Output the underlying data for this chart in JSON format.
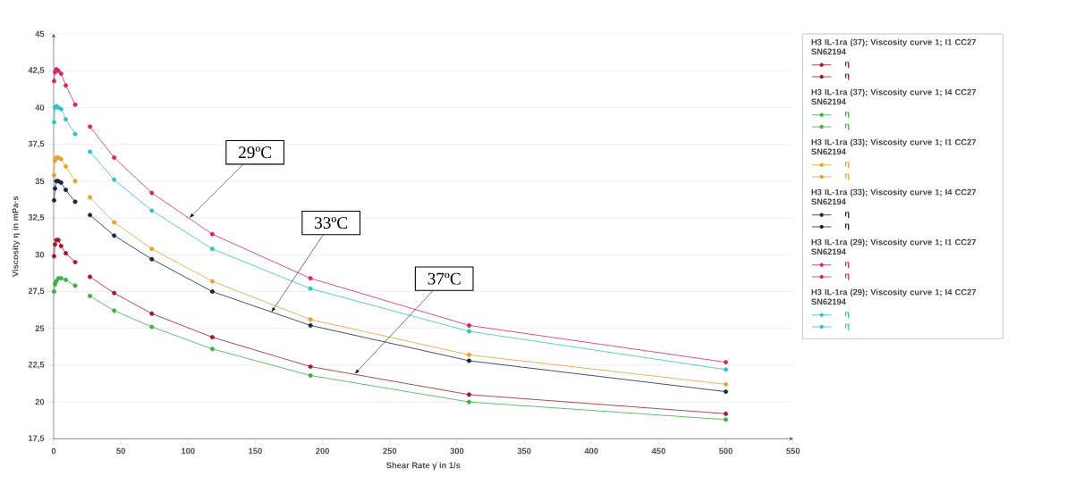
{
  "chart_data": {
    "type": "line",
    "xlabel": "Shear Rate γ̇ in 1/s",
    "ylabel": "Viscosity η in mPa·s",
    "xlim": [
      0,
      550
    ],
    "xticks": [
      0,
      50,
      100,
      150,
      200,
      250,
      300,
      350,
      400,
      450,
      500,
      550
    ],
    "ylim": [
      17.5,
      45
    ],
    "yticks": [
      {
        "value": 17.5,
        "label": "17,5"
      },
      20,
      {
        "value": 22.5,
        "label": "22,5"
      },
      25,
      {
        "value": 27.5,
        "label": "27,5"
      },
      30,
      {
        "value": 32.5,
        "label": "32,5"
      },
      35,
      {
        "value": 37.5,
        "label": "37,5"
      },
      40,
      {
        "value": 42.5,
        "label": "42,5"
      },
      45
    ],
    "grid": "y",
    "marker": "circle",
    "line_style": "solid",
    "legend": "right",
    "annotations": [
      "H3 IL-1ra (37); Viscosity curve 1; I1 CC27 SN62194",
      "H3 IL-1ra (37); Viscosity curve 1; I4 CC27 SN62194",
      "H3 IL-1ra (33); Viscosity curve 1; I1 CC27 SN62194",
      "H3 IL-1ra (33); Viscosity curve 1; I4 CC27 SN62194",
      "H3 IL-1ra (29); Viscosity curve 1; I1 CC27 SN62194",
      "H3 IL-1ra (29); Viscosity curve 1; I4 CC27 SN62194",
      {
        "text": "29ºC",
        "x": 101,
        "y": 32.5
      },
      {
        "text": "33ºC",
        "x": 162,
        "y": 26.1
      },
      {
        "text": "37ºC",
        "x": 224,
        "y": 21.9
      }
    ],
    "series": [
      {
        "name": "η",
        "color": "#a0192b",
        "x": [
          0.3,
          1,
          2,
          3.5,
          5.5,
          9,
          16
        ],
        "values": [
          29.9,
          30.7,
          31.0,
          31.0,
          30.6,
          30.1,
          29.5
        ]
      },
      {
        "name": "η",
        "color": "#a0192b",
        "x": [
          27,
          45,
          73,
          118,
          191,
          309,
          500
        ],
        "values": [
          28.5,
          27.4,
          26.0,
          24.4,
          22.4,
          20.5,
          19.2
        ]
      },
      {
        "name": "η",
        "color": "#3cb043",
        "x": [
          0.3,
          1,
          2,
          3.5,
          5.5,
          9,
          16
        ],
        "values": [
          27.5,
          28.0,
          28.2,
          28.4,
          28.4,
          28.3,
          27.9
        ]
      },
      {
        "name": "η",
        "color": "#3cb043",
        "x": [
          27,
          45,
          73,
          118,
          191,
          309,
          500
        ],
        "values": [
          27.2,
          26.2,
          25.1,
          23.6,
          21.8,
          20.0,
          18.8
        ]
      },
      {
        "name": "η",
        "color": "#e8a030",
        "x": [
          0.3,
          1,
          2,
          3.5,
          5.5,
          9,
          16
        ],
        "values": [
          35.4,
          36.4,
          36.6,
          36.6,
          36.5,
          36.0,
          35.0
        ]
      },
      {
        "name": "η",
        "color": "#e8a030",
        "x": [
          27,
          45,
          73,
          118,
          191,
          309,
          500
        ],
        "values": [
          33.9,
          32.2,
          30.4,
          28.2,
          25.6,
          23.2,
          21.2
        ]
      },
      {
        "name": "η",
        "color": "#1a2540",
        "x": [
          0.3,
          1,
          2,
          3.5,
          5.5,
          9,
          16
        ],
        "values": [
          33.7,
          34.5,
          35.0,
          35.0,
          34.9,
          34.4,
          33.6
        ]
      },
      {
        "name": "η",
        "color": "#1a2540",
        "x": [
          27,
          45,
          73,
          118,
          191,
          309,
          500
        ],
        "values": [
          32.7,
          31.3,
          29.7,
          27.5,
          25.2,
          22.8,
          20.7
        ]
      },
      {
        "name": "η",
        "color": "#d6246e",
        "x": [
          0.3,
          1,
          2,
          3.5,
          5.5,
          9,
          16
        ],
        "values": [
          41.8,
          42.4,
          42.6,
          42.5,
          42.3,
          41.5,
          40.2
        ]
      },
      {
        "name": "η",
        "color": "#d6246e",
        "x": [
          27,
          45,
          73,
          118,
          191,
          309,
          500
        ],
        "values": [
          38.7,
          36.6,
          34.2,
          31.4,
          28.4,
          25.2,
          22.7
        ]
      },
      {
        "name": "η",
        "color": "#2ec4c4",
        "x": [
          0.3,
          1,
          2,
          3.5,
          5.5,
          9,
          16
        ],
        "values": [
          39.0,
          40.0,
          40.1,
          40.0,
          39.9,
          39.2,
          38.2
        ]
      },
      {
        "name": "η",
        "color": "#2ec4c4",
        "x": [
          27,
          45,
          73,
          118,
          191,
          309,
          500
        ],
        "values": [
          37.0,
          35.1,
          33.0,
          30.4,
          27.7,
          24.8,
          22.2
        ]
      }
    ]
  }
}
